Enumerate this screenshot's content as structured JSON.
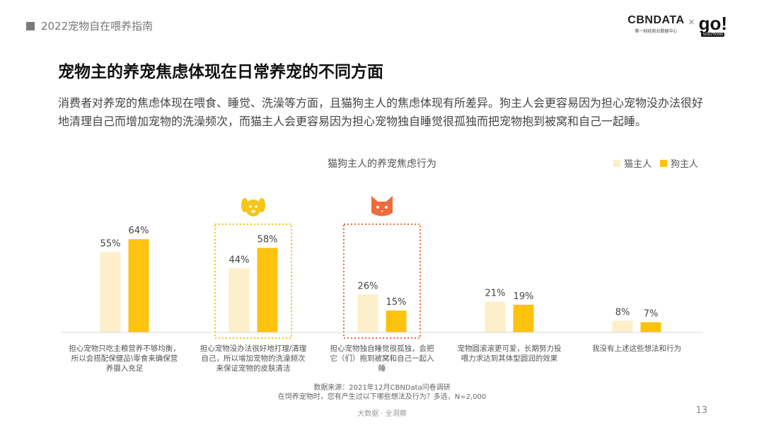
{
  "header": {
    "report_title": "2022宠物自在喂养指南"
  },
  "logo": {
    "brand": "CBNDATA",
    "brand_sub": "第一财经商业数据中心",
    "times": "×",
    "partner": "go!",
    "partner_sub": "SOLUTIONS"
  },
  "page": {
    "title": "宠物主的养宠焦虑体现在日常养宠的不同方面",
    "description": "消费者对养宠的焦虑体现在喂食、睡觉、洗澡等方面，且猫狗主人的焦虑体现有所差异。狗主人会更容易因为担心宠物没办法很好地清理自己而增加宠物的洗澡频次，而猫主人会更容易因为担心宠物独自睡觉很孤独而把宠物抱到被窝和自己一起睡。"
  },
  "chart_data": {
    "type": "bar",
    "title": "猫狗主人的养宠焦虑行为",
    "categories": [
      "担心宠物只吃主粮营养不够均衡，所以会搭配保健品\\零食来确保营养摄入充足",
      "担心宠物没办法很好地打理/清理自己，所以增加宠物的洗澡频次来保证宠物的皮肤清洁",
      "担心宠物独自睡觉很孤独，会把它（们）抱到被窝和自己一起入睡",
      "宠物圆滚滚更可爱，长期努力投喂力求达到其体型圆润的效果",
      "我没有上述这些想法和行为"
    ],
    "series": [
      {
        "name": "猫主人",
        "values": [
          55,
          44,
          26,
          21,
          8
        ],
        "color": "#FCEFC9"
      },
      {
        "name": "狗主人",
        "values": [
          64,
          58,
          15,
          19,
          7
        ],
        "color": "#FFC20E"
      }
    ],
    "value_suffix": "%",
    "ylim": [
      0,
      100
    ],
    "grid": false,
    "legend_position": "top-right",
    "highlights": [
      {
        "category_index": 1,
        "icon": "dog-icon",
        "color": "#F5C518"
      },
      {
        "category_index": 2,
        "icon": "cat-icon",
        "color": "#F06A3F"
      }
    ]
  },
  "source": {
    "line1": "数据来源：2021年12月CBNData问卷调研",
    "line2": "在饲养宠物时，您有产生过以下哪些想法及行为？多选，N=2,000"
  },
  "footer": {
    "text": "大数据 · 全洞察",
    "page_number": "13"
  }
}
